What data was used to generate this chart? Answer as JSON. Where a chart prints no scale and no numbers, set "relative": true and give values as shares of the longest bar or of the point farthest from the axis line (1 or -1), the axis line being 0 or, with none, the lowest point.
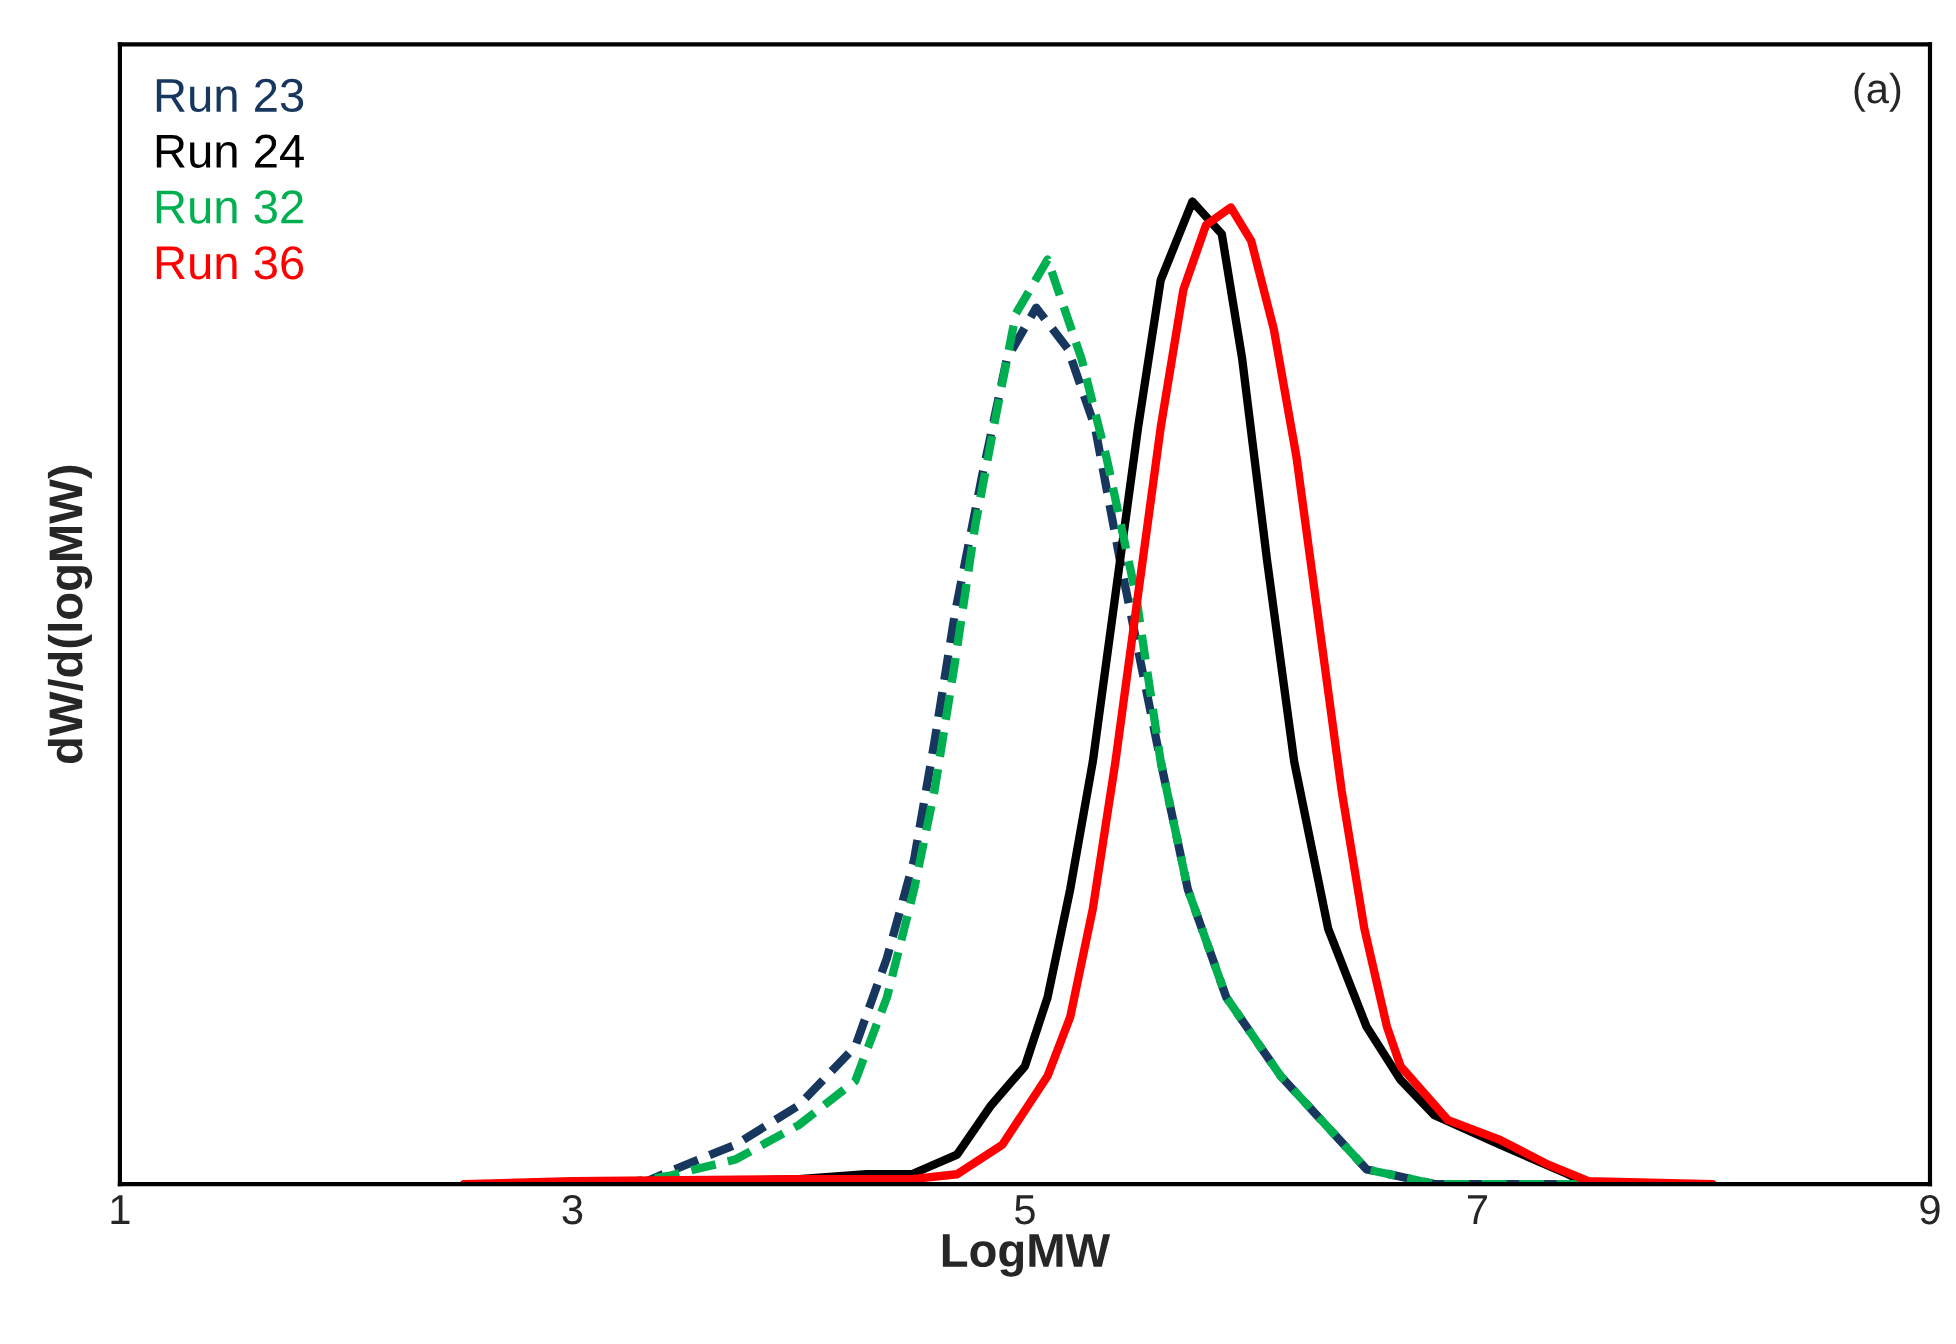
{
  "chart_data": {
    "type": "line",
    "xlabel": "LogMW",
    "ylabel": "dW/d(logMW)",
    "relative": true,
    "xlim": [
      1,
      9
    ],
    "xticks": [
      1,
      3,
      5,
      7,
      9
    ],
    "grid": false,
    "legend": "top left",
    "marker": "none",
    "annotations": [
      "(a)"
    ],
    "series": [
      {
        "name": "Run 23",
        "color": "#17375e",
        "line_style": "dashed",
        "x": [
          3.3,
          3.42,
          3.72,
          4.0,
          4.25,
          4.39,
          4.51,
          4.6,
          4.69,
          4.81,
          4.92,
          5.05,
          5.19,
          5.31,
          5.42,
          5.6,
          5.72,
          5.89,
          6.13,
          6.37,
          6.51,
          6.81,
          7.46
        ],
        "values": [
          0,
          0.012,
          0.04,
          0.08,
          0.14,
          0.23,
          0.33,
          0.45,
          0.58,
          0.72,
          0.84,
          0.892,
          0.85,
          0.77,
          0.635,
          0.43,
          0.3,
          0.19,
          0.11,
          0.05,
          0.015,
          0,
          0
        ]
      },
      {
        "name": "Run 24",
        "color": "#000000",
        "line_style": "solid",
        "x": [
          3.3,
          4.0,
          4.3,
          4.5,
          4.7,
          4.85,
          5.0,
          5.1,
          5.2,
          5.3,
          5.4,
          5.5,
          5.6,
          5.74,
          5.87,
          5.96,
          6.07,
          6.19,
          6.34,
          6.51,
          6.66,
          6.81,
          7.1,
          7.4,
          7.49
        ],
        "values": [
          0,
          0.005,
          0.01,
          0.01,
          0.03,
          0.08,
          0.12,
          0.19,
          0.3,
          0.43,
          0.6,
          0.77,
          0.92,
          1.0,
          0.967,
          0.84,
          0.635,
          0.43,
          0.26,
          0.16,
          0.106,
          0.07,
          0.04,
          0.01,
          0
        ]
      },
      {
        "name": "Run 32",
        "color": "#00b050",
        "line_style": "dashed",
        "x": [
          3.2,
          3.42,
          3.72,
          4.0,
          4.25,
          4.39,
          4.51,
          4.6,
          4.69,
          4.78,
          4.87,
          4.96,
          5.1,
          5.25,
          5.36,
          5.49,
          5.6,
          5.72,
          5.89,
          6.13,
          6.37,
          6.51,
          6.81,
          7.46
        ],
        "values": [
          0,
          0.008,
          0.025,
          0.06,
          0.105,
          0.19,
          0.3,
          0.4,
          0.53,
          0.67,
          0.78,
          0.886,
          0.941,
          0.84,
          0.74,
          0.6,
          0.43,
          0.3,
          0.19,
          0.11,
          0.05,
          0.015,
          0,
          0
        ]
      },
      {
        "name": "Run 36",
        "color": "#ff0000",
        "line_style": "solid",
        "x": [
          2.52,
          3.0,
          4.0,
          4.5,
          4.7,
          4.9,
          5.1,
          5.2,
          5.3,
          5.4,
          5.5,
          5.6,
          5.7,
          5.8,
          5.91,
          6.0,
          6.1,
          6.2,
          6.3,
          6.4,
          6.5,
          6.6,
          6.66,
          6.87,
          7.1,
          7.31,
          7.49,
          8.04
        ],
        "values": [
          0,
          0.003,
          0.005,
          0.005,
          0.01,
          0.04,
          0.11,
          0.17,
          0.28,
          0.43,
          0.6,
          0.77,
          0.91,
          0.976,
          0.994,
          0.96,
          0.87,
          0.74,
          0.57,
          0.4,
          0.26,
          0.16,
          0.12,
          0.065,
          0.045,
          0.02,
          0.003,
          0
        ]
      }
    ]
  }
}
